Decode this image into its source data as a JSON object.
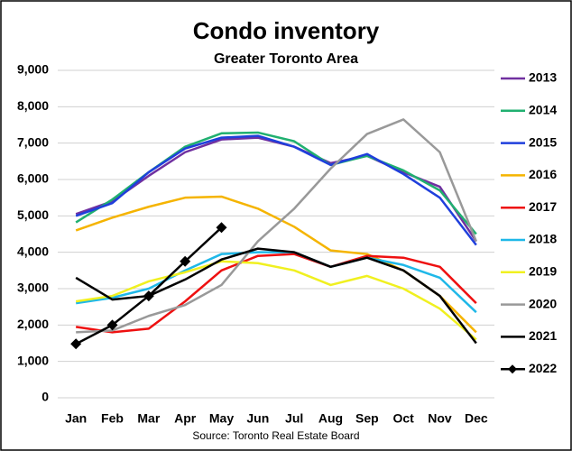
{
  "chart_data": {
    "type": "line",
    "title": "Condo inventory",
    "subtitle": "Greater Toronto Area",
    "source": "Source: Toronto Real Estate Board",
    "categories": [
      "Jan",
      "Feb",
      "Mar",
      "Apr",
      "May",
      "Jun",
      "Jul",
      "Aug",
      "Sep",
      "Oct",
      "Nov",
      "Dec"
    ],
    "ylim": [
      0,
      9000
    ],
    "yticks": [
      0,
      {
        "value": 1000,
        "label": "1,000"
      },
      {
        "value": 2000,
        "label": "2,000"
      },
      {
        "value": 3000,
        "label": "3,000"
      },
      {
        "value": 4000,
        "label": "4,000"
      },
      {
        "value": 5000,
        "label": "5,000"
      },
      {
        "value": 6000,
        "label": "6,000"
      },
      {
        "value": 7000,
        "label": "7,000"
      },
      {
        "value": 8000,
        "label": "8,000"
      },
      {
        "value": 9000,
        "label": "9,000"
      }
    ],
    "grid": true,
    "legend": "right",
    "series": [
      {
        "name": "2013",
        "color": "#7030a0",
        "values": [
          5050,
          5400,
          6100,
          6750,
          7100,
          7150,
          6900,
          6450,
          6650,
          6200,
          5800,
          4300
        ]
      },
      {
        "name": "2014",
        "color": "#20b070",
        "values": [
          4820,
          5450,
          6200,
          6900,
          7270,
          7290,
          7050,
          6400,
          6650,
          6250,
          5700,
          4500
        ]
      },
      {
        "name": "2015",
        "color": "#1f3fdc",
        "values": [
          5000,
          5350,
          6200,
          6850,
          7150,
          7200,
          6900,
          6400,
          6700,
          6150,
          5500,
          4200
        ]
      },
      {
        "name": "2016",
        "color": "#f5b400",
        "values": [
          4600,
          4950,
          5250,
          5500,
          5530,
          5200,
          4700,
          4050,
          3950,
          3500,
          2800,
          1800
        ]
      },
      {
        "name": "2017",
        "color": "#ee1010",
        "values": [
          1950,
          1800,
          1900,
          2650,
          3500,
          3900,
          3950,
          3600,
          3900,
          3850,
          3600,
          2600
        ]
      },
      {
        "name": "2018",
        "color": "#1fb8e8",
        "values": [
          2600,
          2750,
          3000,
          3500,
          3950,
          4000,
          4000,
          3600,
          3850,
          3650,
          3300,
          2350
        ]
      },
      {
        "name": "2019",
        "color": "#f0f020",
        "values": [
          2650,
          2800,
          3200,
          3450,
          3750,
          3700,
          3500,
          3100,
          3350,
          3000,
          2450,
          1600
        ]
      },
      {
        "name": "2020",
        "color": "#999999",
        "values": [
          1800,
          1850,
          2250,
          2550,
          3100,
          4300,
          5200,
          6300,
          7250,
          7650,
          6750,
          4300
        ]
      },
      {
        "name": "2021",
        "color": "#000000",
        "values": [
          3300,
          2700,
          2800,
          3250,
          3800,
          4100,
          4000,
          3600,
          3850,
          3500,
          2800,
          1500
        ]
      },
      {
        "name": "2022",
        "color": "#000000",
        "marker": "diamond",
        "values": [
          1480,
          2000,
          2800,
          3750,
          4680,
          null,
          null,
          null,
          null,
          null,
          null,
          null
        ]
      }
    ]
  }
}
